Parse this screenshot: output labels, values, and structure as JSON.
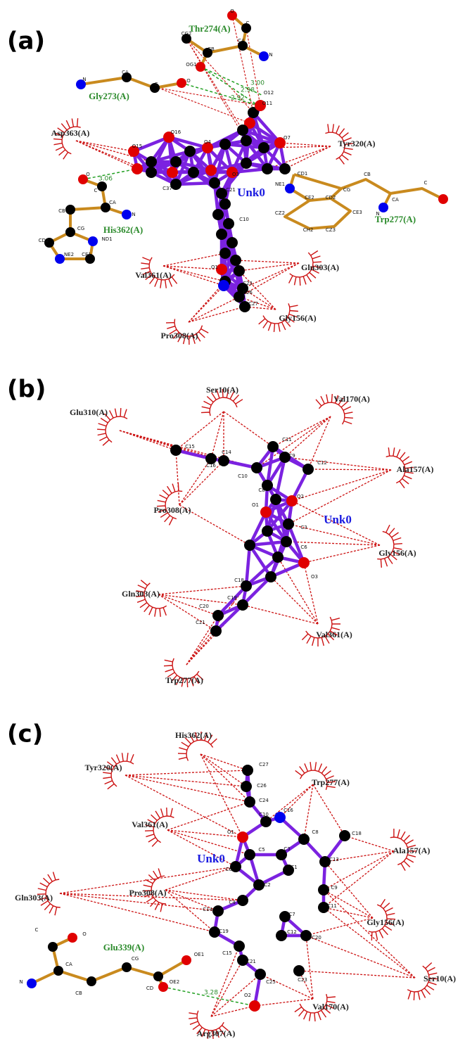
{
  "panels": [
    {
      "label": "(a)",
      "ligand": "Unk0",
      "hbond_residues": [
        "Thr274(A)",
        "Gly273(A)",
        "His362(A)",
        "Trp277(A)"
      ],
      "hydrophobic_residues": [
        "Asp363(A)",
        "Tyr320(A)",
        "Val361(A)",
        "Gln303(A)",
        "Gly156(A)",
        "Pro308(A)"
      ],
      "distances": [
        "3.00",
        "2.98",
        "2.92",
        "3.06"
      ],
      "atoms": [
        "O",
        "C",
        "CA",
        "N",
        "CB",
        "CG2",
        "OG1",
        "O12",
        "O11",
        "O",
        "C",
        "CA",
        "N",
        "O16",
        "O15",
        "O4",
        "O7",
        "O3",
        "C37",
        "CD1",
        "NE1",
        "CE2",
        "CD2",
        "CZ2",
        "CH2",
        "CZ3",
        "CE3",
        "CB",
        "CG",
        "CA",
        "C",
        "N",
        "O",
        "C",
        "CA",
        "N",
        "CB",
        "CG",
        "ND1",
        "CE1",
        "NE2",
        "CD2",
        "O1",
        "C23",
        "C26",
        "C27",
        "C21",
        "C10"
      ]
    },
    {
      "label": "(b)",
      "ligand": "Unk0",
      "hydrophobic_residues": [
        "Ser10(A)",
        "Val170(A)",
        "Glu310(A)",
        "Ala157(A)",
        "Pro308(A)",
        "Gly156(A)",
        "Gln303(A)",
        "Val361(A)",
        "Trp277(A)"
      ],
      "atoms": [
        "C15",
        "C14",
        "C16",
        "C11",
        "C9",
        "C12",
        "C10",
        "C8",
        "O2",
        "O1",
        "C3",
        "C6",
        "O3",
        "C18",
        "C19",
        "C20",
        "C21"
      ]
    },
    {
      "label": "(c)",
      "ligand": "Unk0",
      "hbond_residues": [
        "Glu339(A)"
      ],
      "hydrophobic_residues": [
        "His362(A)",
        "Tyr320(A)",
        "Trp277(A)",
        "Val361(A)",
        "Ala157(A)",
        "Gln303(A)",
        "Pro308(A)",
        "Gly156(A)",
        "Ser10(A)",
        "Val170(A)",
        "Arg307(A)"
      ],
      "distances": [
        "3.28"
      ],
      "atoms": [
        "C27",
        "C26",
        "C24",
        "C16",
        "C10",
        "O1",
        "C8",
        "C18",
        "C5",
        "C3",
        "C13",
        "C6",
        "C1",
        "C9",
        "C2",
        "C11",
        "C4",
        "C7",
        "C14",
        "C12",
        "C20",
        "C19",
        "C15",
        "C21",
        "C23",
        "C25",
        "O2",
        "C",
        "O",
        "CA",
        "N",
        "CB",
        "CG",
        "CD",
        "OE1",
        "OE2"
      ]
    }
  ]
}
